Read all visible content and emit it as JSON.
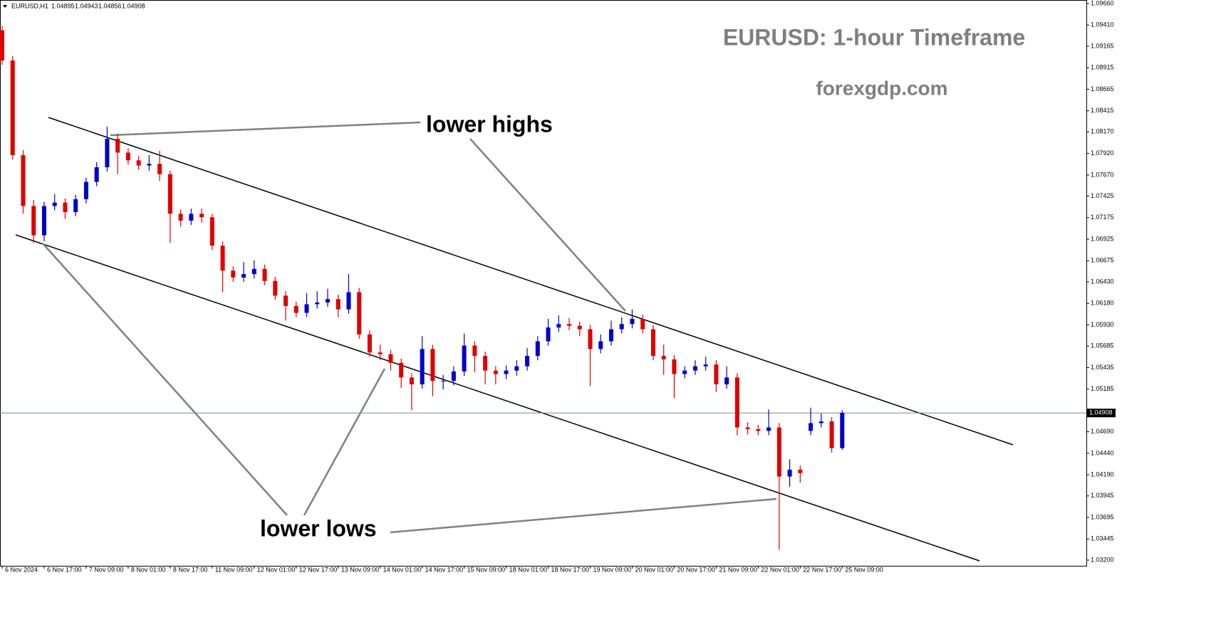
{
  "chart_data": {
    "type": "candlestick",
    "symbol": "EURUSD,H1",
    "header_values": [
      1.04895,
      1.04943,
      1.04856,
      1.04908
    ],
    "title": "EURUSD: 1-hour Timeframe",
    "subtitle": "forexgdp.com",
    "annotations": [
      "lower highs",
      "lower lows"
    ],
    "up_color": "#0000cc",
    "down_color": "#e00000",
    "grid": false,
    "current_price": 1.04908,
    "x": [
      0,
      4,
      8,
      12,
      16,
      20,
      24,
      28,
      32,
      36,
      40,
      44,
      48,
      52,
      56,
      60,
      64,
      68,
      72,
      76,
      80,
      84,
      88,
      92,
      96,
      100,
      104,
      108,
      112,
      116,
      120,
      124,
      128,
      132,
      136,
      140,
      144,
      148,
      152,
      156,
      160,
      164,
      168,
      172,
      176,
      180,
      184,
      188,
      192,
      196,
      200,
      204,
      208,
      212,
      216,
      220,
      224,
      228,
      232,
      236,
      240,
      244,
      248,
      252,
      256,
      260,
      264,
      268,
      272,
      276,
      280,
      284,
      288,
      292,
      296,
      300,
      304,
      308,
      312,
      316,
      320
    ],
    "open": [
      1.0935,
      1.09,
      1.079,
      1.0731,
      1.0697,
      1.0731,
      1.0735,
      1.0724,
      1.0739,
      1.0759,
      1.0776,
      1.0809,
      1.0793,
      1.0784,
      1.0778,
      1.078,
      1.0768,
      1.0722,
      1.0714,
      1.0722,
      1.0718,
      1.0685,
      1.0656,
      1.0648,
      1.0652,
      1.0658,
      1.0644,
      1.0627,
      1.0615,
      1.0607,
      1.0617,
      1.0619,
      1.0623,
      1.0611,
      1.0631,
      1.0582,
      1.0561,
      1.0559,
      1.0549,
      1.0532,
      1.0524,
      1.0565,
      1.0528,
      1.0528,
      1.0539,
      1.0569,
      1.0557,
      1.054,
      1.0536,
      1.054,
      1.0545,
      1.0557,
      1.0574,
      1.059,
      1.0594,
      1.0592,
      1.0588,
      1.0565,
      1.0574,
      1.0588,
      1.0594,
      1.06,
      1.0588,
      1.0557,
      1.0553,
      1.0536,
      1.054,
      1.0545,
      1.0547,
      1.0524,
      1.0532,
      1.0474,
      1.0472,
      1.047,
      1.0474,
      1.0417,
      1.0425,
      1.047,
      1.0479,
      1.0481,
      1.045
    ],
    "high": [
      1.094,
      1.0905,
      1.0796,
      1.0738,
      1.0736,
      1.0745,
      1.074,
      1.0744,
      1.0764,
      1.0782,
      1.0823,
      1.0815,
      1.0798,
      1.0789,
      1.079,
      1.0795,
      1.0772,
      1.0727,
      1.0728,
      1.0728,
      1.0722,
      1.069,
      1.0661,
      1.0666,
      1.0668,
      1.0663,
      1.0649,
      1.0632,
      1.062,
      1.063,
      1.0632,
      1.0635,
      1.0628,
      1.0652,
      1.0636,
      1.0587,
      1.057,
      1.0564,
      1.0554,
      1.0537,
      1.058,
      1.057,
      1.0535,
      1.0545,
      1.0583,
      1.0574,
      1.0562,
      1.0545,
      1.0546,
      1.0552,
      1.0566,
      1.058,
      1.06,
      1.0604,
      1.0601,
      1.0597,
      1.0593,
      1.0582,
      1.0598,
      1.0602,
      1.0611,
      1.0605,
      1.0593,
      1.057,
      1.0558,
      1.0545,
      1.0552,
      1.0556,
      1.0552,
      1.0545,
      1.0537,
      1.048,
      1.0477,
      1.0495,
      1.0479,
      1.0437,
      1.043,
      1.0497,
      1.049,
      1.0486,
      1.0494
    ],
    "low": [
      1.0895,
      1.0785,
      1.0722,
      1.0688,
      1.069,
      1.0726,
      1.0716,
      1.0719,
      1.0734,
      1.0754,
      1.0771,
      1.0768,
      1.0779,
      1.0773,
      1.0772,
      1.076,
      1.0688,
      1.0707,
      1.0709,
      1.0712,
      1.068,
      1.0631,
      1.0643,
      1.0643,
      1.0647,
      1.0639,
      1.0622,
      1.0598,
      1.0602,
      1.0602,
      1.0612,
      1.0614,
      1.0602,
      1.0606,
      1.0577,
      1.0556,
      1.0552,
      1.054,
      1.052,
      1.0494,
      1.0519,
      1.051,
      1.0518,
      1.0523,
      1.0534,
      1.0538,
      1.0524,
      1.0524,
      1.053,
      1.0534,
      1.054,
      1.0552,
      1.0569,
      1.0585,
      1.0587,
      1.058,
      1.0522,
      1.056,
      1.0569,
      1.0583,
      1.0589,
      1.0583,
      1.0552,
      1.0535,
      1.0508,
      1.0531,
      1.0535,
      1.054,
      1.0515,
      1.0519,
      1.0465,
      1.0466,
      1.0465,
      1.0465,
      1.0332,
      1.0405,
      1.041,
      1.0465,
      1.0474,
      1.0445,
      1.0448
    ],
    "close": [
      1.09,
      1.079,
      1.0731,
      1.0697,
      1.0731,
      1.0735,
      1.0724,
      1.0739,
      1.0759,
      1.0776,
      1.0809,
      1.0793,
      1.0784,
      1.0778,
      1.078,
      1.0768,
      1.0722,
      1.0714,
      1.0722,
      1.0718,
      1.0685,
      1.0656,
      1.0648,
      1.0652,
      1.0658,
      1.0644,
      1.0627,
      1.0615,
      1.0607,
      1.0617,
      1.0619,
      1.0623,
      1.0611,
      1.0631,
      1.0582,
      1.0561,
      1.0559,
      1.0549,
      1.0532,
      1.0524,
      1.0565,
      1.0528,
      1.0528,
      1.0539,
      1.0569,
      1.0557,
      1.054,
      1.0536,
      1.054,
      1.0545,
      1.0557,
      1.0574,
      1.059,
      1.0594,
      1.0592,
      1.0588,
      1.0565,
      1.0574,
      1.0588,
      1.0594,
      1.06,
      1.0588,
      1.0557,
      1.0553,
      1.0536,
      1.054,
      1.0545,
      1.0547,
      1.0524,
      1.0532,
      1.0474,
      1.0472,
      1.047,
      1.0474,
      1.0417,
      1.0425,
      1.0421,
      1.0479,
      1.0481,
      1.045,
      1.0491
    ],
    "xlim": [
      0,
      413
    ],
    "xticks": [
      {
        "value": 0,
        "label": "6 Nov 2024"
      },
      {
        "value": 16,
        "label": "6 Nov 17:00"
      },
      {
        "value": 32,
        "label": "7 Nov 09:00"
      },
      {
        "value": 48,
        "label": "8 Nov 01:00"
      },
      {
        "value": 64,
        "label": "8 Nov 17:00"
      },
      {
        "value": 80,
        "label": "11 Nov 09:00"
      },
      {
        "value": 96,
        "label": "12 Nov 01:00"
      },
      {
        "value": 112,
        "label": "12 Nov 17:00"
      },
      {
        "value": 128,
        "label": "13 Nov 09:00"
      },
      {
        "value": 144,
        "label": "14 Nov 01:00"
      },
      {
        "value": 160,
        "label": "14 Nov 17:00"
      },
      {
        "value": 176,
        "label": "15 Nov 09:00"
      },
      {
        "value": 192,
        "label": "18 Nov 01:00"
      },
      {
        "value": 208,
        "label": "18 Nov 17:00"
      },
      {
        "value": 224,
        "label": "19 Nov 09:00"
      },
      {
        "value": 240,
        "label": "20 Nov 01:00"
      },
      {
        "value": 256,
        "label": "20 Nov 17:00"
      },
      {
        "value": 272,
        "label": "21 Nov 09:00"
      },
      {
        "value": 288,
        "label": "22 Nov 01:00"
      },
      {
        "value": 304,
        "label": "22 Nov 17:00"
      },
      {
        "value": 320,
        "label": "25 Nov 09:00"
      }
    ],
    "ylim": [
      1.032,
      1.0966
    ],
    "yticks": [
      {
        "value": 1.0966,
        "label": "1.09660"
      },
      {
        "value": 1.0941,
        "label": "1.09410"
      },
      1.09165,
      1.08915,
      1.08665,
      1.08415,
      {
        "value": 1.0817,
        "label": "1.08170"
      },
      {
        "value": 1.0792,
        "label": "1.07920"
      },
      {
        "value": 1.0767,
        "label": "1.07670"
      },
      1.07425,
      1.07175,
      1.06925,
      1.06675,
      {
        "value": 1.0643,
        "label": "1.06430"
      },
      {
        "value": 1.0618,
        "label": "1.06180"
      },
      {
        "value": 1.0593,
        "label": "1.05930"
      },
      1.05685,
      1.05435,
      1.05185,
      {
        "value": 1.0469,
        "label": "1.04690"
      },
      {
        "value": 1.0444,
        "label": "1.04440"
      },
      {
        "value": 1.0419,
        "label": "1.04190"
      },
      1.03945,
      1.03695,
      1.03445,
      {
        "value": 1.032,
        "label": "1.03200"
      }
    ]
  }
}
